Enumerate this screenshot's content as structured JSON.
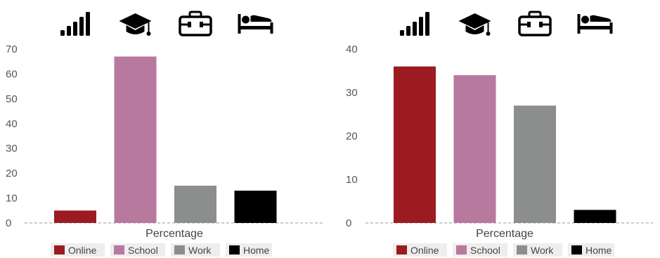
{
  "chart_data": [
    {
      "type": "bar",
      "categories": [
        "Online",
        "School",
        "Work",
        "Home"
      ],
      "values": [
        5,
        67,
        15,
        13
      ],
      "xlabel": "Percentage",
      "ylabel": "",
      "ylim": [
        0,
        70
      ],
      "yticks": [
        0,
        10,
        20,
        30,
        40,
        50,
        60,
        70
      ],
      "colors": [
        "#9b1b20",
        "#b8799f",
        "#8c8e8e",
        "#000000"
      ],
      "icons": [
        "signal-bars-icon",
        "graduation-cap-icon",
        "briefcase-icon",
        "bed-icon"
      ],
      "legend": [
        "Online",
        "School",
        "Work",
        "Home"
      ],
      "legend_position": "bottom",
      "grid": false
    },
    {
      "type": "bar",
      "categories": [
        "Online",
        "School",
        "Work",
        "Home"
      ],
      "values": [
        36,
        34,
        27,
        3
      ],
      "xlabel": "Percentage",
      "ylabel": "",
      "ylim": [
        0,
        40
      ],
      "yticks": [
        0,
        10,
        20,
        30,
        40
      ],
      "colors": [
        "#9b1b20",
        "#b8799f",
        "#8c8e8e",
        "#000000"
      ],
      "icons": [
        "signal-bars-icon",
        "graduation-cap-icon",
        "briefcase-icon",
        "bed-icon"
      ],
      "legend": [
        "Online",
        "School",
        "Work",
        "Home"
      ],
      "legend_position": "bottom",
      "grid": false
    }
  ]
}
